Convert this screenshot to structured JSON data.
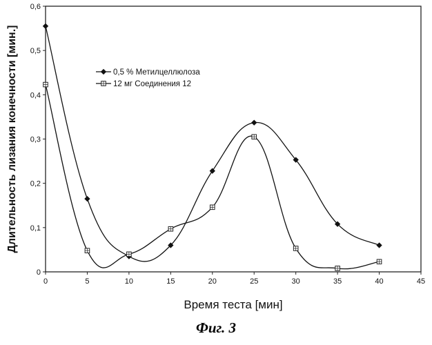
{
  "chart_data": {
    "type": "line",
    "xlabel": "Время теста [мин]",
    "ylabel": "Длительность лизания конечности [мин.]",
    "xlim": [
      0,
      45
    ],
    "ylim": [
      0,
      0.6
    ],
    "x_ticks": [
      "0",
      "5",
      "10",
      "15",
      "20",
      "25",
      "30",
      "35",
      "40",
      "45"
    ],
    "y_ticks": [
      "0",
      "0,1",
      "0,2",
      "0,3",
      "0,4",
      "0,5",
      "0,6"
    ],
    "legend_position": "upper-left-center",
    "grid": false,
    "series": [
      {
        "name": "0,5 % Метилцеллюлоза",
        "marker": "diamond",
        "x": [
          0,
          5,
          10,
          15,
          20,
          25,
          30,
          35,
          40
        ],
        "y": [
          0.555,
          0.165,
          0.035,
          0.06,
          0.228,
          0.337,
          0.253,
          0.108,
          0.06
        ]
      },
      {
        "name": "12 мг Соединения 12",
        "marker": "square",
        "x": [
          0,
          5,
          10,
          15,
          20,
          25,
          30,
          35,
          40
        ],
        "y": [
          0.423,
          0.048,
          0.04,
          0.097,
          0.146,
          0.305,
          0.053,
          0.008,
          0.023
        ]
      }
    ]
  },
  "caption": "Фиг. 3"
}
